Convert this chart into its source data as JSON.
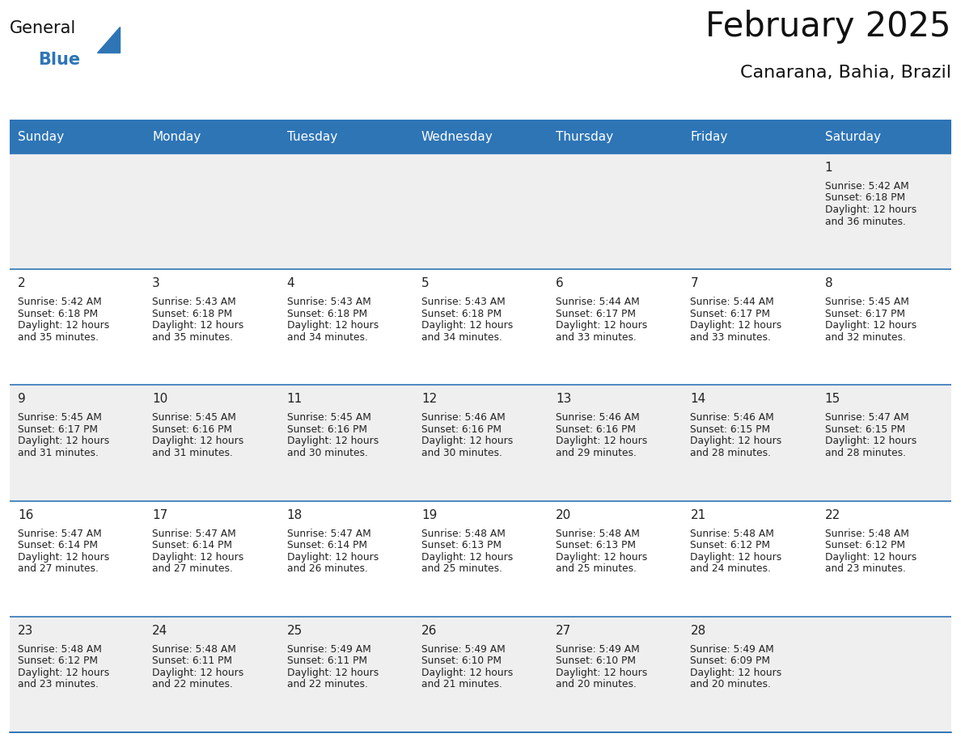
{
  "title": "February 2025",
  "subtitle": "Canarana, Bahia, Brazil",
  "header_bg": "#2E75B6",
  "header_text": "#FFFFFF",
  "cell_bg_white": "#FFFFFF",
  "cell_bg_gray": "#EFEFEF",
  "border_color": "#2E75B6",
  "text_dark": "#1a1a1a",
  "text_body": "#1a1a1a",
  "day_names": [
    "Sunday",
    "Monday",
    "Tuesday",
    "Wednesday",
    "Thursday",
    "Friday",
    "Saturday"
  ],
  "days": [
    {
      "day": 1,
      "col": 6,
      "row": 0,
      "sunrise": "5:42 AM",
      "sunset": "6:18 PM",
      "daylight_hrs": "12 hours",
      "daylight_min": "and 36 minutes."
    },
    {
      "day": 2,
      "col": 0,
      "row": 1,
      "sunrise": "5:42 AM",
      "sunset": "6:18 PM",
      "daylight_hrs": "12 hours",
      "daylight_min": "and 35 minutes."
    },
    {
      "day": 3,
      "col": 1,
      "row": 1,
      "sunrise": "5:43 AM",
      "sunset": "6:18 PM",
      "daylight_hrs": "12 hours",
      "daylight_min": "and 35 minutes."
    },
    {
      "day": 4,
      "col": 2,
      "row": 1,
      "sunrise": "5:43 AM",
      "sunset": "6:18 PM",
      "daylight_hrs": "12 hours",
      "daylight_min": "and 34 minutes."
    },
    {
      "day": 5,
      "col": 3,
      "row": 1,
      "sunrise": "5:43 AM",
      "sunset": "6:18 PM",
      "daylight_hrs": "12 hours",
      "daylight_min": "and 34 minutes."
    },
    {
      "day": 6,
      "col": 4,
      "row": 1,
      "sunrise": "5:44 AM",
      "sunset": "6:17 PM",
      "daylight_hrs": "12 hours",
      "daylight_min": "and 33 minutes."
    },
    {
      "day": 7,
      "col": 5,
      "row": 1,
      "sunrise": "5:44 AM",
      "sunset": "6:17 PM",
      "daylight_hrs": "12 hours",
      "daylight_min": "and 33 minutes."
    },
    {
      "day": 8,
      "col": 6,
      "row": 1,
      "sunrise": "5:45 AM",
      "sunset": "6:17 PM",
      "daylight_hrs": "12 hours",
      "daylight_min": "and 32 minutes."
    },
    {
      "day": 9,
      "col": 0,
      "row": 2,
      "sunrise": "5:45 AM",
      "sunset": "6:17 PM",
      "daylight_hrs": "12 hours",
      "daylight_min": "and 31 minutes."
    },
    {
      "day": 10,
      "col": 1,
      "row": 2,
      "sunrise": "5:45 AM",
      "sunset": "6:16 PM",
      "daylight_hrs": "12 hours",
      "daylight_min": "and 31 minutes."
    },
    {
      "day": 11,
      "col": 2,
      "row": 2,
      "sunrise": "5:45 AM",
      "sunset": "6:16 PM",
      "daylight_hrs": "12 hours",
      "daylight_min": "and 30 minutes."
    },
    {
      "day": 12,
      "col": 3,
      "row": 2,
      "sunrise": "5:46 AM",
      "sunset": "6:16 PM",
      "daylight_hrs": "12 hours",
      "daylight_min": "and 30 minutes."
    },
    {
      "day": 13,
      "col": 4,
      "row": 2,
      "sunrise": "5:46 AM",
      "sunset": "6:16 PM",
      "daylight_hrs": "12 hours",
      "daylight_min": "and 29 minutes."
    },
    {
      "day": 14,
      "col": 5,
      "row": 2,
      "sunrise": "5:46 AM",
      "sunset": "6:15 PM",
      "daylight_hrs": "12 hours",
      "daylight_min": "and 28 minutes."
    },
    {
      "day": 15,
      "col": 6,
      "row": 2,
      "sunrise": "5:47 AM",
      "sunset": "6:15 PM",
      "daylight_hrs": "12 hours",
      "daylight_min": "and 28 minutes."
    },
    {
      "day": 16,
      "col": 0,
      "row": 3,
      "sunrise": "5:47 AM",
      "sunset": "6:14 PM",
      "daylight_hrs": "12 hours",
      "daylight_min": "and 27 minutes."
    },
    {
      "day": 17,
      "col": 1,
      "row": 3,
      "sunrise": "5:47 AM",
      "sunset": "6:14 PM",
      "daylight_hrs": "12 hours",
      "daylight_min": "and 27 minutes."
    },
    {
      "day": 18,
      "col": 2,
      "row": 3,
      "sunrise": "5:47 AM",
      "sunset": "6:14 PM",
      "daylight_hrs": "12 hours",
      "daylight_min": "and 26 minutes."
    },
    {
      "day": 19,
      "col": 3,
      "row": 3,
      "sunrise": "5:48 AM",
      "sunset": "6:13 PM",
      "daylight_hrs": "12 hours",
      "daylight_min": "and 25 minutes."
    },
    {
      "day": 20,
      "col": 4,
      "row": 3,
      "sunrise": "5:48 AM",
      "sunset": "6:13 PM",
      "daylight_hrs": "12 hours",
      "daylight_min": "and 25 minutes."
    },
    {
      "day": 21,
      "col": 5,
      "row": 3,
      "sunrise": "5:48 AM",
      "sunset": "6:12 PM",
      "daylight_hrs": "12 hours",
      "daylight_min": "and 24 minutes."
    },
    {
      "day": 22,
      "col": 6,
      "row": 3,
      "sunrise": "5:48 AM",
      "sunset": "6:12 PM",
      "daylight_hrs": "12 hours",
      "daylight_min": "and 23 minutes."
    },
    {
      "day": 23,
      "col": 0,
      "row": 4,
      "sunrise": "5:48 AM",
      "sunset": "6:12 PM",
      "daylight_hrs": "12 hours",
      "daylight_min": "and 23 minutes."
    },
    {
      "day": 24,
      "col": 1,
      "row": 4,
      "sunrise": "5:48 AM",
      "sunset": "6:11 PM",
      "daylight_hrs": "12 hours",
      "daylight_min": "and 22 minutes."
    },
    {
      "day": 25,
      "col": 2,
      "row": 4,
      "sunrise": "5:49 AM",
      "sunset": "6:11 PM",
      "daylight_hrs": "12 hours",
      "daylight_min": "and 22 minutes."
    },
    {
      "day": 26,
      "col": 3,
      "row": 4,
      "sunrise": "5:49 AM",
      "sunset": "6:10 PM",
      "daylight_hrs": "12 hours",
      "daylight_min": "and 21 minutes."
    },
    {
      "day": 27,
      "col": 4,
      "row": 4,
      "sunrise": "5:49 AM",
      "sunset": "6:10 PM",
      "daylight_hrs": "12 hours",
      "daylight_min": "and 20 minutes."
    },
    {
      "day": 28,
      "col": 5,
      "row": 4,
      "sunrise": "5:49 AM",
      "sunset": "6:09 PM",
      "daylight_hrs": "12 hours",
      "daylight_min": "and 20 minutes."
    }
  ],
  "num_rows": 5,
  "num_cols": 7
}
